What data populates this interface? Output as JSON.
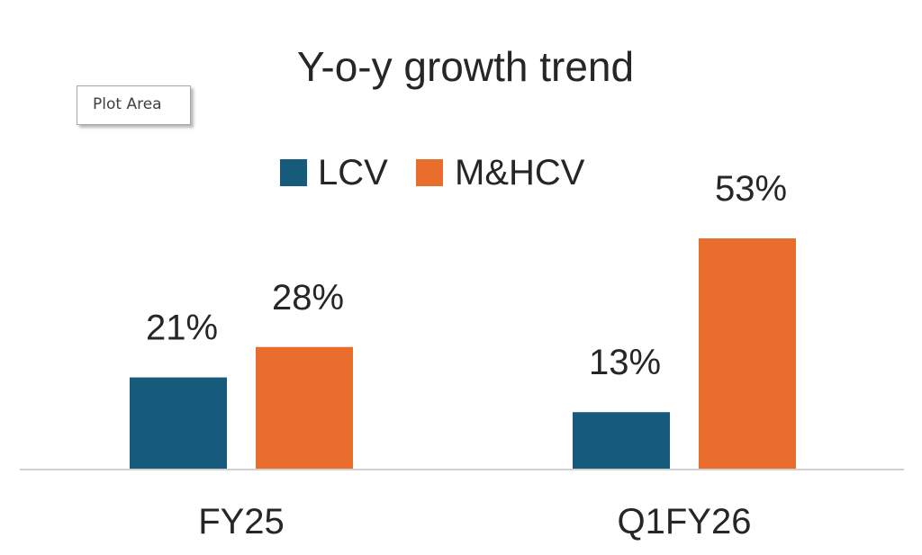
{
  "tooltip": {
    "label": "Plot Area"
  },
  "colors": {
    "LCV": "#175b7c",
    "M&HCV": "#e96e2e",
    "text": "#262626",
    "axis": "#cfcfcf"
  },
  "chart_data": {
    "type": "bar",
    "title": "Y-o-y growth trend",
    "categories": [
      "FY25",
      "Q1FY26"
    ],
    "series": [
      {
        "name": "LCV",
        "values": [
          21,
          13
        ],
        "labels": [
          "21%",
          "13%"
        ]
      },
      {
        "name": "M&HCV",
        "values": [
          28,
          53
        ],
        "labels": [
          "28%",
          "53%"
        ]
      }
    ],
    "xlabel": "",
    "ylabel": "",
    "ylim": [
      0,
      60
    ],
    "grid": false,
    "legend": "top"
  }
}
